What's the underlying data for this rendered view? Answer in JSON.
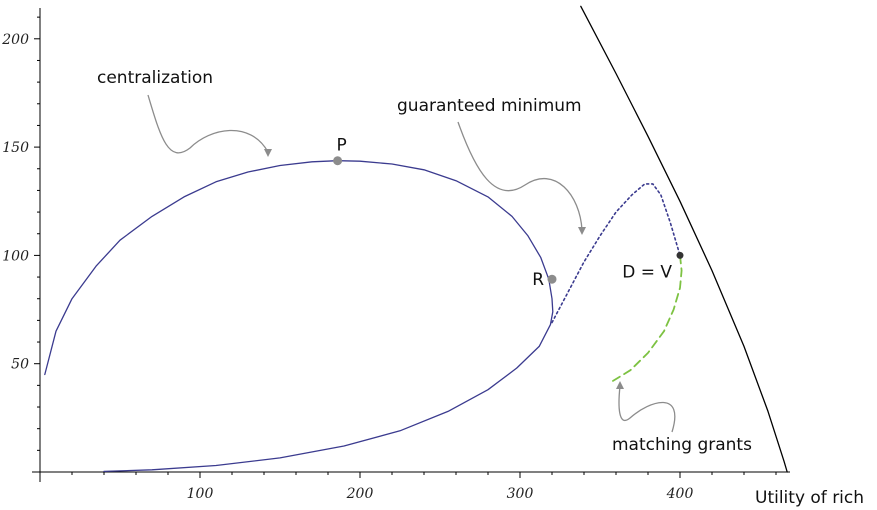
{
  "chart_data": {
    "type": "line",
    "xlabel": "Utility of rich",
    "ylabel": "",
    "xlim": [
      0,
      490
    ],
    "ylim": [
      0,
      215
    ],
    "x_ticks": [
      "100",
      "200",
      "300",
      "400"
    ],
    "y_ticks": [
      "50",
      "100",
      "150",
      "200"
    ],
    "grid": false,
    "colors": {
      "centralization": "#3b3b8f",
      "guaranteed": "#3b3b8f",
      "matching": "#7dc242",
      "frontier": "#000000",
      "points": "#8c8c8c",
      "arrows": "#8c8c8c"
    },
    "series": [
      {
        "key": "centralization",
        "style": "solid",
        "points": [
          [
            3,
            45
          ],
          [
            10,
            65
          ],
          [
            20,
            80
          ],
          [
            35,
            95
          ],
          [
            50,
            107
          ],
          [
            70,
            118
          ],
          [
            90,
            127
          ],
          [
            110,
            134
          ],
          [
            130,
            138.5
          ],
          [
            150,
            141.5
          ],
          [
            170,
            143.2
          ],
          [
            186,
            143.7
          ],
          [
            200,
            143.5
          ],
          [
            220,
            142.2
          ],
          [
            240,
            139.5
          ],
          [
            260,
            134.5
          ],
          [
            280,
            127
          ],
          [
            295,
            118
          ],
          [
            305,
            109
          ],
          [
            313,
            99
          ],
          [
            318,
            89
          ],
          [
            320,
            80
          ],
          [
            320.5,
            74
          ],
          [
            319,
            68
          ],
          [
            312,
            58
          ],
          [
            298,
            48
          ],
          [
            280,
            38
          ],
          [
            255,
            28
          ],
          [
            225,
            19
          ],
          [
            190,
            12
          ],
          [
            150,
            6.5
          ],
          [
            110,
            3
          ],
          [
            70,
            1
          ],
          [
            40,
            0.3
          ]
        ]
      },
      {
        "key": "guaranteed",
        "style": "dotted",
        "points": [
          [
            320,
            69
          ],
          [
            330,
            83
          ],
          [
            340,
            97
          ],
          [
            350,
            109
          ],
          [
            360,
            120
          ],
          [
            370,
            128
          ],
          [
            378,
            133
          ],
          [
            383,
            133
          ],
          [
            388,
            128
          ],
          [
            394,
            115
          ],
          [
            400,
            100
          ]
        ]
      },
      {
        "key": "matching",
        "style": "dashed",
        "points": [
          [
            400,
            100
          ],
          [
            401,
            93
          ],
          [
            400,
            85
          ],
          [
            396,
            75
          ],
          [
            390,
            65
          ],
          [
            380,
            55
          ],
          [
            369,
            47
          ],
          [
            358,
            42
          ]
        ]
      },
      {
        "key": "frontier",
        "style": "solid",
        "points": [
          [
            338,
            215
          ],
          [
            360,
            184
          ],
          [
            380,
            155
          ],
          [
            400,
            125
          ],
          [
            420,
            93
          ],
          [
            440,
            58
          ],
          [
            455,
            28
          ],
          [
            465,
            5
          ],
          [
            467,
            0
          ]
        ]
      }
    ],
    "points": [
      {
        "label": "P",
        "x": 186,
        "y": 143.7
      },
      {
        "label": "R",
        "x": 320,
        "y": 89
      },
      {
        "label": "D = V",
        "x": 400,
        "y": 100
      }
    ],
    "annotations": [
      {
        "key": "centralization",
        "text": "centralization"
      },
      {
        "key": "guaranteed",
        "text": "guaranteed minimum"
      },
      {
        "key": "matching",
        "text": "matching grants"
      }
    ]
  }
}
